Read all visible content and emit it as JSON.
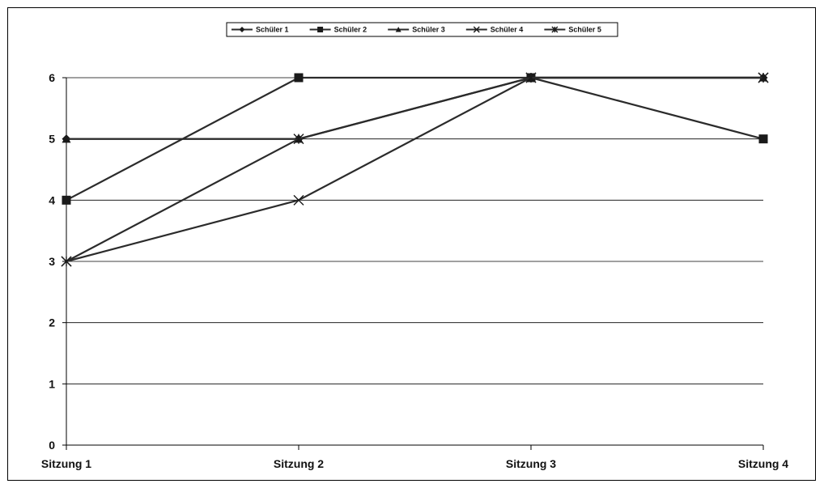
{
  "chart_data": {
    "type": "line",
    "categories": [
      "Sitzung 1",
      "Sitzung 2",
      "Sitzung 3",
      "Sitzung 4"
    ],
    "ylim": [
      0,
      6
    ],
    "yticks": [
      0,
      1,
      2,
      3,
      4,
      5,
      6
    ],
    "grid": true,
    "legend_position": "top-center",
    "series": [
      {
        "name": "Schüler 1",
        "marker": "diamond",
        "values": [
          5,
          5,
          6,
          6
        ]
      },
      {
        "name": "Schüler 2",
        "marker": "square",
        "values": [
          4,
          6,
          6,
          5
        ]
      },
      {
        "name": "Schüler 3",
        "marker": "triangle",
        "values": [
          5,
          5,
          6,
          6
        ]
      },
      {
        "name": "Schüler 4",
        "marker": "x",
        "values": [
          3,
          4,
          6,
          6
        ]
      },
      {
        "name": "Schüler 5",
        "marker": "asterisk",
        "values": [
          3,
          5,
          6,
          6
        ]
      }
    ],
    "line_color": "#2b2b2b",
    "grid_color": "#000000"
  }
}
